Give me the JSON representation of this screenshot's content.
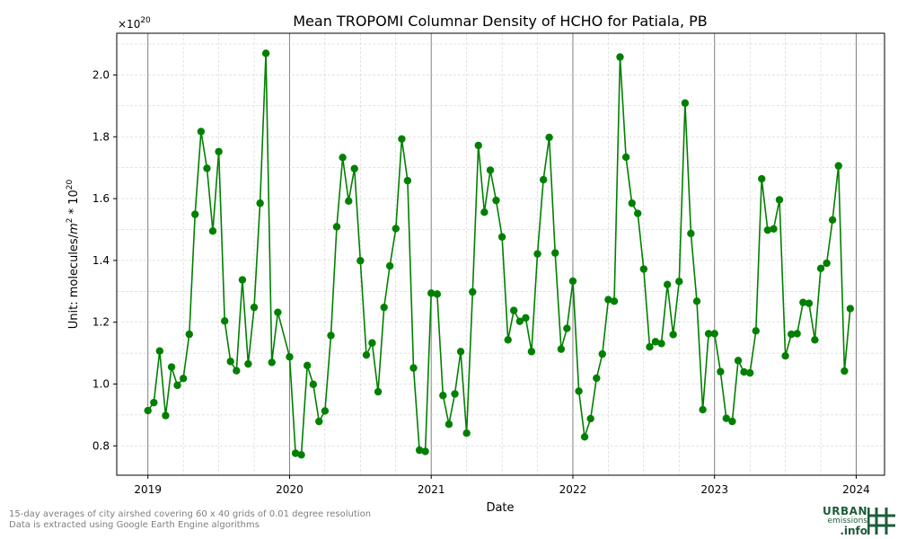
{
  "chart_data": {
    "type": "line",
    "title": "Mean TROPOMI Columnar Density of HCHO for Patiala, PB",
    "xlabel": "Date",
    "ylabel_prefix": "Unit: molecules/",
    "ylabel_m": "m",
    "ylabel_exp1": "2",
    "ylabel_mid": " * 10",
    "ylabel_exp2": "20",
    "offset_base": "×10",
    "offset_exp": "20",
    "xlim": [
      2018.78,
      2024.2
    ],
    "ylim": [
      0.705,
      2.135
    ],
    "x_ticks": [
      2019,
      2020,
      2021,
      2022,
      2023,
      2024
    ],
    "x_tick_labels": [
      "2019",
      "2020",
      "2021",
      "2022",
      "2023",
      "2024"
    ],
    "y_ticks": [
      0.8,
      1.0,
      1.2,
      1.4,
      1.6,
      1.8,
      2.0
    ],
    "y_tick_labels": [
      "0.8",
      "1.0",
      "1.2",
      "1.4",
      "1.6",
      "1.8",
      "2.0"
    ],
    "grid": true,
    "series_color": "#008000",
    "x": [
      2019.0,
      2019.042,
      2019.083,
      2019.125,
      2019.167,
      2019.208,
      2019.25,
      2019.292,
      2019.333,
      2019.375,
      2019.417,
      2019.458,
      2019.5,
      2019.542,
      2019.583,
      2019.625,
      2019.667,
      2019.708,
      2019.75,
      2019.792,
      2019.833,
      2019.875,
      2019.917,
      2020.0,
      2020.042,
      2020.083,
      2020.125,
      2020.167,
      2020.208,
      2020.25,
      2020.292,
      2020.333,
      2020.375,
      2020.417,
      2020.458,
      2020.5,
      2020.542,
      2020.583,
      2020.625,
      2020.667,
      2020.708,
      2020.75,
      2020.792,
      2020.833,
      2020.875,
      2020.917,
      2020.958,
      2021.0,
      2021.042,
      2021.083,
      2021.125,
      2021.167,
      2021.208,
      2021.25,
      2021.292,
      2021.333,
      2021.375,
      2021.417,
      2021.458,
      2021.5,
      2021.542,
      2021.583,
      2021.625,
      2021.667,
      2021.708,
      2021.75,
      2021.792,
      2021.833,
      2021.875,
      2021.917,
      2021.958,
      2022.0,
      2022.042,
      2022.083,
      2022.125,
      2022.167,
      2022.208,
      2022.25,
      2022.292,
      2022.333,
      2022.375,
      2022.417,
      2022.458,
      2022.5,
      2022.542,
      2022.583,
      2022.625,
      2022.667,
      2022.708,
      2022.75,
      2022.792,
      2022.833,
      2022.875,
      2022.917,
      2022.958,
      2023.0,
      2023.042,
      2023.083,
      2023.125,
      2023.167,
      2023.208,
      2023.25,
      2023.292,
      2023.333,
      2023.375,
      2023.417,
      2023.458,
      2023.5,
      2023.542,
      2023.583,
      2023.625,
      2023.667,
      2023.708,
      2023.75,
      2023.792,
      2023.833,
      2023.875,
      2023.917,
      2023.958
    ],
    "y": [
      0.914,
      0.94,
      1.107,
      0.898,
      1.055,
      0.996,
      1.018,
      1.161,
      1.549,
      1.817,
      1.698,
      1.495,
      1.752,
      1.204,
      1.073,
      1.043,
      1.337,
      1.065,
      1.248,
      1.585,
      2.07,
      1.07,
      1.232,
      1.088,
      0.776,
      0.771,
      1.06,
      0.999,
      0.879,
      0.913,
      1.157,
      1.509,
      1.733,
      1.592,
      1.697,
      1.399,
      1.094,
      1.133,
      0.975,
      1.248,
      1.382,
      1.503,
      1.793,
      1.658,
      1.052,
      0.786,
      0.782,
      1.294,
      1.291,
      0.963,
      0.87,
      0.968,
      1.105,
      0.841,
      1.298,
      1.772,
      1.556,
      1.692,
      1.594,
      1.476,
      1.143,
      1.238,
      1.203,
      1.214,
      1.105,
      1.421,
      1.661,
      1.798,
      1.424,
      1.113,
      1.18,
      1.333,
      0.977,
      0.829,
      0.888,
      1.019,
      1.097,
      1.273,
      1.268,
      2.058,
      1.734,
      1.585,
      1.552,
      1.372,
      1.12,
      1.137,
      1.131,
      1.322,
      1.16,
      1.332,
      1.909,
      1.487,
      1.268,
      0.917,
      1.163,
      1.163,
      1.04,
      0.889,
      0.879,
      1.076,
      1.039,
      1.036,
      1.172,
      1.664,
      1.498,
      1.502,
      1.596,
      1.091,
      1.161,
      1.163,
      1.264,
      1.261,
      1.143,
      1.374,
      1.391,
      1.531,
      1.706,
      1.042,
      1.244
    ]
  },
  "footnote_line1": "15-day averages of city airshed covering 60 x 40 grids of 0.01 degree resolution",
  "footnote_line2": "Data is extracted using Google Earth Engine algorithms",
  "logo": {
    "line1": "URBAN",
    "line2": "emissions",
    "line3": ".info"
  }
}
